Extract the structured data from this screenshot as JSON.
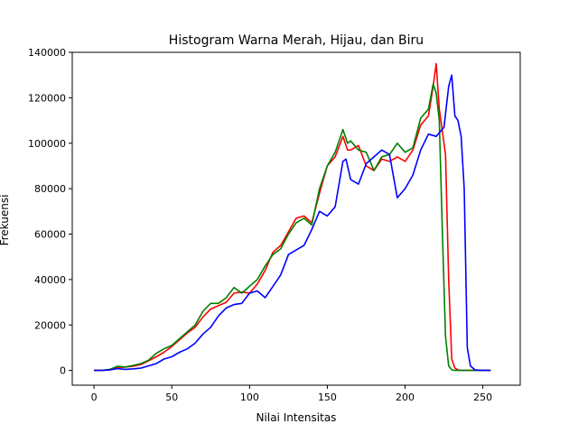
{
  "chart_data": {
    "type": "line",
    "title": "Histogram Warna Merah, Hijau, dan Biru",
    "xlabel": "Nilai Intensitas",
    "ylabel": "Frekuensi",
    "xlim": [
      -14,
      274
    ],
    "ylim": [
      -6500,
      140000
    ],
    "x_ticks": [
      0,
      50,
      100,
      150,
      200,
      250
    ],
    "y_ticks": [
      0,
      20000,
      40000,
      60000,
      80000,
      100000,
      120000,
      140000
    ],
    "grid": false,
    "legend": "none",
    "series": [
      {
        "color": "#ff0000",
        "x": [
          0,
          5,
          10,
          15,
          20,
          25,
          30,
          35,
          40,
          45,
          50,
          55,
          60,
          65,
          70,
          75,
          80,
          85,
          90,
          95,
          100,
          105,
          110,
          115,
          120,
          125,
          130,
          135,
          140,
          145,
          150,
          155,
          160,
          163,
          165,
          170,
          175,
          180,
          185,
          190,
          195,
          200,
          205,
          210,
          215,
          218,
          220,
          222,
          224,
          226,
          228,
          230,
          232,
          234,
          236,
          240,
          245,
          250,
          255
        ],
        "values": [
          0,
          0,
          300,
          1200,
          1500,
          1800,
          2600,
          4200,
          6000,
          8000,
          10500,
          13500,
          16500,
          19000,
          23500,
          27000,
          28500,
          30000,
          34000,
          34500,
          34000,
          38000,
          44000,
          52000,
          55000,
          61000,
          67000,
          68000,
          65000,
          78000,
          90000,
          94000,
          103000,
          97000,
          97000,
          99000,
          90000,
          88000,
          93000,
          92000,
          94000,
          92000,
          97000,
          108000,
          112000,
          125000,
          135000,
          115000,
          105000,
          95000,
          40000,
          5000,
          1000,
          200,
          0,
          0,
          0,
          0,
          0
        ]
      },
      {
        "color": "#008000",
        "x": [
          0,
          5,
          10,
          15,
          20,
          25,
          30,
          35,
          40,
          45,
          50,
          55,
          60,
          65,
          70,
          75,
          80,
          85,
          90,
          95,
          100,
          105,
          110,
          115,
          120,
          125,
          130,
          135,
          140,
          145,
          150,
          155,
          160,
          163,
          165,
          170,
          175,
          180,
          185,
          190,
          195,
          200,
          205,
          210,
          215,
          218,
          220,
          222,
          224,
          226,
          228,
          230,
          232,
          236,
          240,
          245,
          250,
          255
        ],
        "values": [
          0,
          0,
          400,
          1800,
          1500,
          2200,
          3000,
          4500,
          7500,
          9500,
          11000,
          14000,
          17000,
          20000,
          26000,
          29500,
          29500,
          32000,
          36500,
          34000,
          37000,
          40000,
          46000,
          51000,
          53500,
          60000,
          65000,
          67000,
          64000,
          80000,
          90000,
          96000,
          106000,
          100000,
          101000,
          97000,
          96000,
          88000,
          94000,
          95000,
          100000,
          96000,
          98000,
          111000,
          115000,
          126000,
          122000,
          110000,
          60000,
          15000,
          2000,
          300,
          0,
          0,
          0,
          0,
          0,
          0
        ]
      },
      {
        "color": "#0000ff",
        "x": [
          0,
          5,
          10,
          15,
          20,
          25,
          30,
          35,
          40,
          45,
          50,
          55,
          60,
          65,
          70,
          75,
          80,
          85,
          90,
          95,
          100,
          105,
          110,
          115,
          120,
          125,
          130,
          135,
          140,
          145,
          150,
          155,
          160,
          162,
          165,
          170,
          175,
          180,
          185,
          190,
          195,
          200,
          205,
          210,
          215,
          220,
          225,
          228,
          230,
          232,
          234,
          236,
          238,
          240,
          242,
          245,
          250,
          255
        ],
        "values": [
          0,
          0,
          200,
          800,
          500,
          700,
          1000,
          2000,
          3000,
          5000,
          6000,
          8000,
          9500,
          12000,
          16000,
          19000,
          24000,
          27500,
          29000,
          29500,
          34000,
          35000,
          32000,
          37000,
          42000,
          51000,
          53000,
          55000,
          62000,
          70000,
          68000,
          72000,
          92000,
          93000,
          84000,
          82000,
          91000,
          94000,
          97000,
          95000,
          76000,
          80000,
          86000,
          97000,
          104000,
          103000,
          107000,
          125000,
          130000,
          112000,
          110000,
          103000,
          80000,
          10000,
          2000,
          200,
          0,
          0
        ]
      }
    ]
  }
}
